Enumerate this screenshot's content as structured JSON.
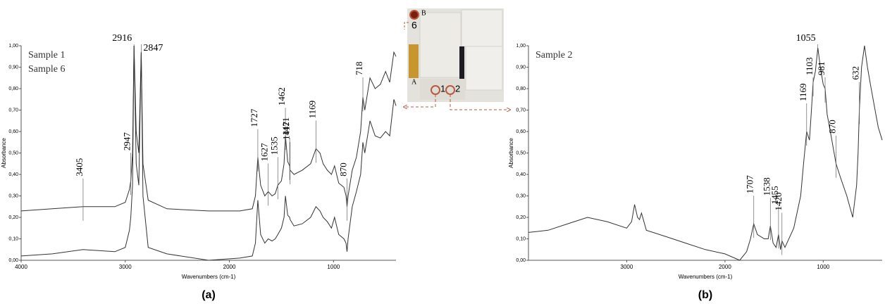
{
  "chart_data": [
    {
      "type": "line",
      "x_label": "Wavenumbers (cm-1)",
      "y_label": "Absorbance",
      "caption": "(a)",
      "xlim": [
        4000,
        400
      ],
      "xticks": [
        4000,
        3000,
        2000,
        1000
      ],
      "ylim": [
        0,
        1.0
      ],
      "yticks": [
        {
          "value": 0,
          "label": "0,00"
        },
        {
          "value": 0.1,
          "label": "0,10"
        },
        {
          "value": 0.2,
          "label": "0,20"
        },
        {
          "value": 0.3,
          "label": "0,30"
        },
        {
          "value": 0.4,
          "label": "0,40"
        },
        {
          "value": 0.5,
          "label": "0,50"
        },
        {
          "value": 0.6,
          "label": "0,60"
        },
        {
          "value": 0.7,
          "label": "0,70"
        },
        {
          "value": 0.8,
          "label": "0,80"
        },
        {
          "value": 0.9,
          "label": "0,90"
        },
        {
          "value": 1.0,
          "label": "1,00"
        }
      ],
      "series": [
        {
          "name": "Sample 1",
          "color": "#333333",
          "x": [
            4000,
            3700,
            3405,
            3100,
            3000,
            2960,
            2947,
            2930,
            2916,
            2895,
            2870,
            2847,
            2830,
            2780,
            2600,
            2200,
            1900,
            1780,
            1750,
            1727,
            1700,
            1660,
            1627,
            1590,
            1560,
            1535,
            1500,
            1475,
            1462,
            1440,
            1421,
            1417,
            1380,
            1300,
            1220,
            1169,
            1130,
            1100,
            1060,
            1020,
            990,
            950,
            900,
            880,
            870,
            860,
            820,
            780,
            740,
            718,
            700,
            650,
            600,
            550,
            500,
            460,
            420,
            400
          ],
          "values": [
            0.23,
            0.24,
            0.25,
            0.25,
            0.27,
            0.33,
            0.37,
            0.5,
            1.0,
            0.6,
            0.5,
            0.97,
            0.45,
            0.28,
            0.24,
            0.23,
            0.23,
            0.24,
            0.3,
            0.48,
            0.35,
            0.3,
            0.32,
            0.3,
            0.31,
            0.35,
            0.37,
            0.45,
            0.58,
            0.46,
            0.44,
            0.42,
            0.4,
            0.42,
            0.45,
            0.52,
            0.5,
            0.45,
            0.42,
            0.4,
            0.44,
            0.36,
            0.34,
            0.3,
            0.25,
            0.3,
            0.42,
            0.48,
            0.6,
            0.76,
            0.7,
            0.85,
            0.8,
            0.82,
            0.88,
            0.83,
            0.97,
            0.95
          ]
        },
        {
          "name": "Sample 6",
          "color": "#333333",
          "x": [
            4000,
            3700,
            3405,
            3100,
            3000,
            2960,
            2947,
            2930,
            2916,
            2895,
            2870,
            2847,
            2830,
            2780,
            2600,
            2200,
            1900,
            1780,
            1750,
            1727,
            1700,
            1660,
            1627,
            1590,
            1560,
            1535,
            1500,
            1475,
            1462,
            1440,
            1421,
            1417,
            1380,
            1300,
            1220,
            1169,
            1130,
            1100,
            1060,
            1020,
            990,
            950,
            900,
            880,
            870,
            860,
            820,
            780,
            740,
            718,
            700,
            650,
            600,
            550,
            500,
            460,
            420,
            400
          ],
          "values": [
            0.02,
            0.03,
            0.05,
            0.04,
            0.06,
            0.14,
            0.2,
            0.35,
            1.0,
            0.45,
            0.35,
            0.97,
            0.3,
            0.06,
            0.03,
            0.0,
            0.01,
            0.02,
            0.08,
            0.28,
            0.12,
            0.08,
            0.1,
            0.09,
            0.1,
            0.12,
            0.15,
            0.2,
            0.3,
            0.21,
            0.2,
            0.19,
            0.16,
            0.17,
            0.2,
            0.25,
            0.23,
            0.2,
            0.18,
            0.15,
            0.2,
            0.12,
            0.1,
            0.08,
            0.04,
            0.1,
            0.25,
            0.32,
            0.4,
            0.55,
            0.5,
            0.65,
            0.58,
            0.57,
            0.6,
            0.58,
            0.75,
            0.72
          ]
        }
      ],
      "peaks": [
        3405,
        2947,
        2916,
        2847,
        1727,
        1627,
        1535,
        1462,
        1421,
        1417,
        1169,
        870,
        718
      ]
    },
    {
      "type": "line",
      "x_label": "Wavenumbers (cm-1)",
      "y_label": "Absorbance",
      "caption": "(b)",
      "xlim": [
        4000,
        400
      ],
      "xticks": [
        3000,
        2000,
        1000
      ],
      "ylim": [
        0,
        1.0
      ],
      "yticks": [
        {
          "value": 0,
          "label": "0,00"
        },
        {
          "value": 0.1,
          "label": "0,10"
        },
        {
          "value": 0.2,
          "label": "0,20"
        },
        {
          "value": 0.3,
          "label": "0,30"
        },
        {
          "value": 0.4,
          "label": "0,40"
        },
        {
          "value": 0.5,
          "label": "0,50"
        },
        {
          "value": 0.6,
          "label": "0,60"
        },
        {
          "value": 0.7,
          "label": "0,70"
        },
        {
          "value": 0.8,
          "label": "0,80"
        },
        {
          "value": 0.9,
          "label": "0,90"
        },
        {
          "value": 1.0,
          "label": "1,00"
        }
      ],
      "series": [
        {
          "name": "Sample 2",
          "color": "#333333",
          "x": [
            4000,
            3800,
            3600,
            3400,
            3200,
            3000,
            2950,
            2920,
            2890,
            2870,
            2850,
            2800,
            2600,
            2400,
            2200,
            2000,
            1850,
            1780,
            1740,
            1707,
            1670,
            1600,
            1560,
            1538,
            1510,
            1480,
            1455,
            1435,
            1420,
            1390,
            1300,
            1230,
            1200,
            1169,
            1140,
            1120,
            1103,
            1080,
            1055,
            1030,
            1000,
            981,
            960,
            920,
            870,
            820,
            760,
            700,
            660,
            645,
            632,
            610,
            580,
            550,
            520,
            480,
            440,
            400
          ],
          "values": [
            0.13,
            0.14,
            0.17,
            0.2,
            0.18,
            0.15,
            0.18,
            0.26,
            0.2,
            0.19,
            0.22,
            0.14,
            0.11,
            0.08,
            0.05,
            0.03,
            0.0,
            0.04,
            0.1,
            0.17,
            0.12,
            0.1,
            0.1,
            0.16,
            0.08,
            0.06,
            0.12,
            0.05,
            0.09,
            0.06,
            0.15,
            0.3,
            0.45,
            0.6,
            0.56,
            0.7,
            0.83,
            0.88,
            0.99,
            0.9,
            0.82,
            0.8,
            0.68,
            0.58,
            0.45,
            0.38,
            0.3,
            0.2,
            0.35,
            0.5,
            0.7,
            0.9,
            1.0,
            0.9,
            0.82,
            0.72,
            0.62,
            0.56
          ]
        }
      ],
      "peaks": [
        1707,
        1538,
        1455,
        1420,
        1169,
        1103,
        1055,
        981,
        870,
        632
      ]
    }
  ],
  "inset": {
    "labels": [
      "B",
      "6",
      "A",
      "1",
      "2"
    ]
  }
}
